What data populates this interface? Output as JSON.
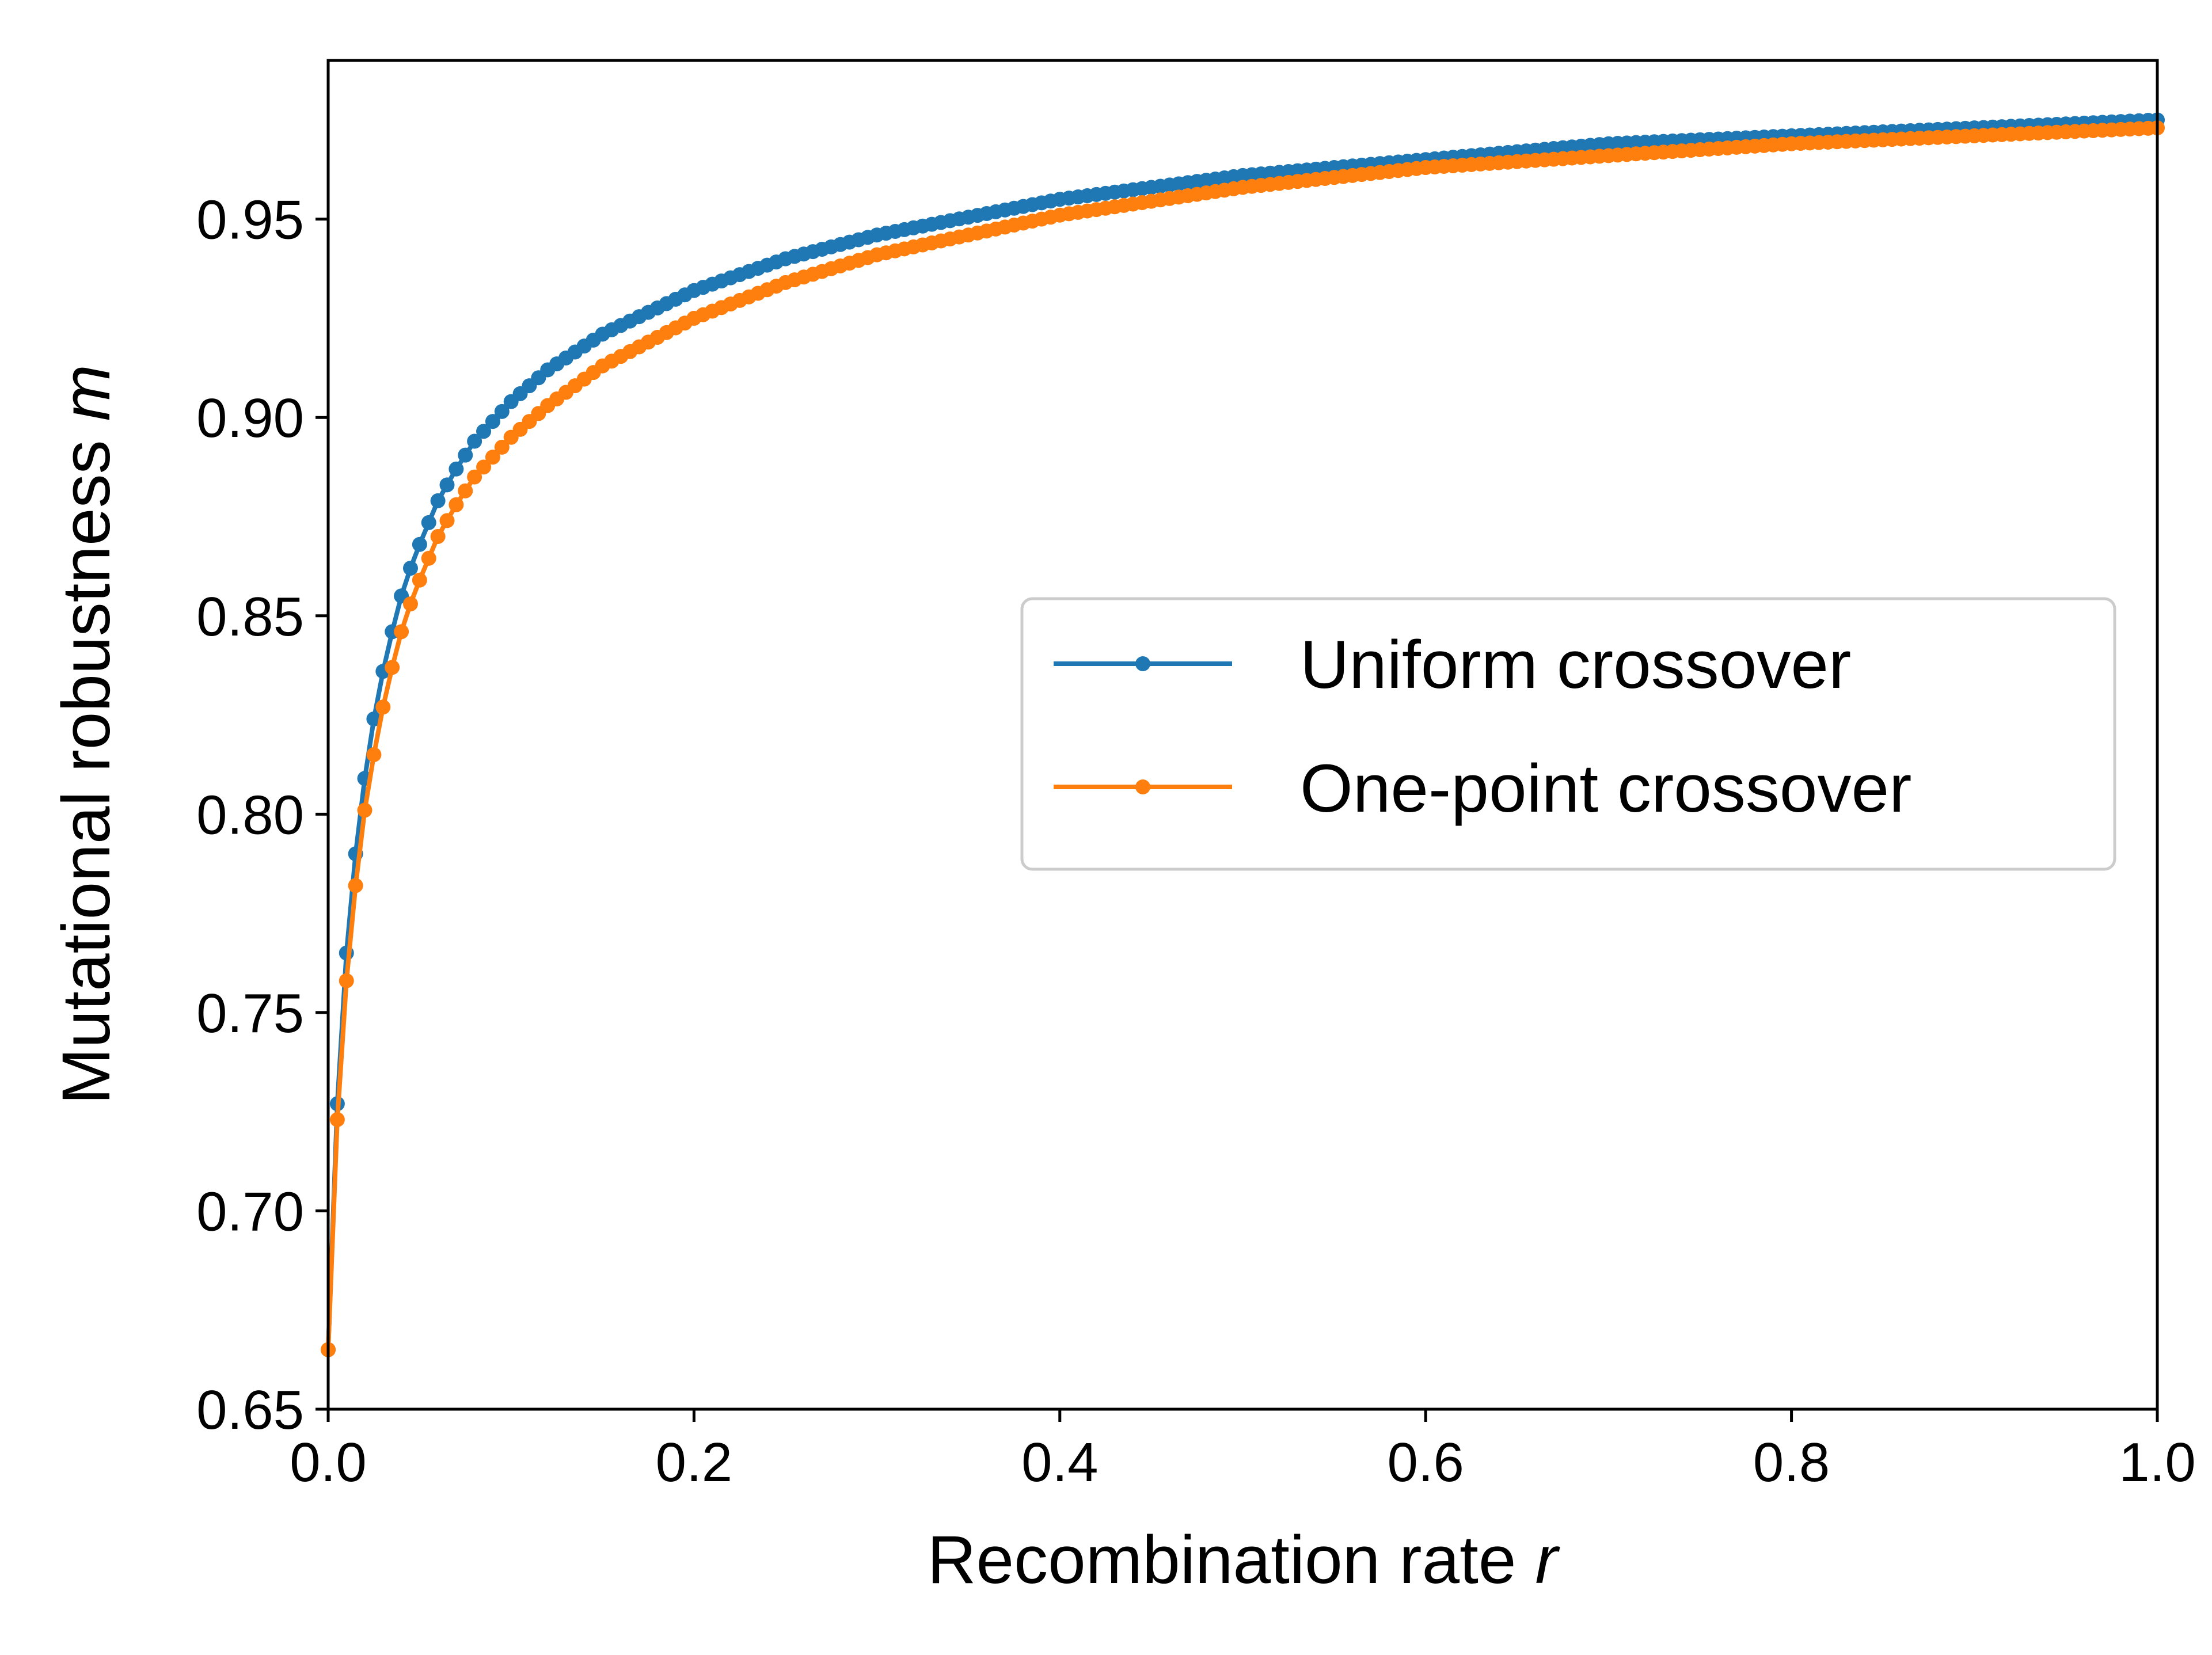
{
  "chart_data": {
    "type": "line",
    "xlabel": "Recombination rate",
    "xlabel_var": "r",
    "ylabel": "Mutational robustness",
    "ylabel_var": "m",
    "xlim": [
      0.0,
      1.0
    ],
    "ylim": [
      0.65,
      0.99
    ],
    "xticks": [
      "0.0",
      "0.2",
      "0.4",
      "0.6",
      "0.8",
      "1.0"
    ],
    "yticks": [
      "0.65",
      "0.70",
      "0.75",
      "0.80",
      "0.85",
      "0.90",
      "0.95"
    ],
    "grid": false,
    "legend_position": "center-right",
    "markers": "dots",
    "x_start": 0.0,
    "x_end": 1.0,
    "x_step": 0.005,
    "series": [
      {
        "name": "Uniform crossover",
        "color": "#1f77b4",
        "key_points": [
          [
            0.0,
            0.665
          ],
          [
            0.005,
            0.727
          ],
          [
            0.01,
            0.765
          ],
          [
            0.015,
            0.79
          ],
          [
            0.02,
            0.809
          ],
          [
            0.025,
            0.824
          ],
          [
            0.03,
            0.836
          ],
          [
            0.035,
            0.846
          ],
          [
            0.04,
            0.855
          ],
          [
            0.045,
            0.862
          ],
          [
            0.05,
            0.868
          ],
          [
            0.06,
            0.879
          ],
          [
            0.07,
            0.887
          ],
          [
            0.08,
            0.894
          ],
          [
            0.09,
            0.899
          ],
          [
            0.1,
            0.904
          ],
          [
            0.12,
            0.912
          ],
          [
            0.15,
            0.921
          ],
          [
            0.2,
            0.932
          ],
          [
            0.25,
            0.94
          ],
          [
            0.3,
            0.946
          ],
          [
            0.4,
            0.955
          ],
          [
            0.5,
            0.961
          ],
          [
            0.6,
            0.965
          ],
          [
            0.7,
            0.969
          ],
          [
            0.8,
            0.971
          ],
          [
            0.9,
            0.973
          ],
          [
            1.0,
            0.975
          ]
        ]
      },
      {
        "name": "One-point crossover",
        "color": "#ff7f0e",
        "key_points": [
          [
            0.0,
            0.665
          ],
          [
            0.005,
            0.723
          ],
          [
            0.01,
            0.758
          ],
          [
            0.015,
            0.782
          ],
          [
            0.02,
            0.801
          ],
          [
            0.025,
            0.815
          ],
          [
            0.03,
            0.827
          ],
          [
            0.035,
            0.837
          ],
          [
            0.04,
            0.846
          ],
          [
            0.045,
            0.853
          ],
          [
            0.05,
            0.859
          ],
          [
            0.06,
            0.87
          ],
          [
            0.07,
            0.878
          ],
          [
            0.08,
            0.885
          ],
          [
            0.09,
            0.89
          ],
          [
            0.1,
            0.895
          ],
          [
            0.12,
            0.903
          ],
          [
            0.15,
            0.913
          ],
          [
            0.2,
            0.925
          ],
          [
            0.25,
            0.934
          ],
          [
            0.3,
            0.941
          ],
          [
            0.4,
            0.951
          ],
          [
            0.5,
            0.958
          ],
          [
            0.6,
            0.963
          ],
          [
            0.7,
            0.966
          ],
          [
            0.8,
            0.969
          ],
          [
            0.9,
            0.971
          ],
          [
            1.0,
            0.973
          ]
        ]
      }
    ]
  }
}
